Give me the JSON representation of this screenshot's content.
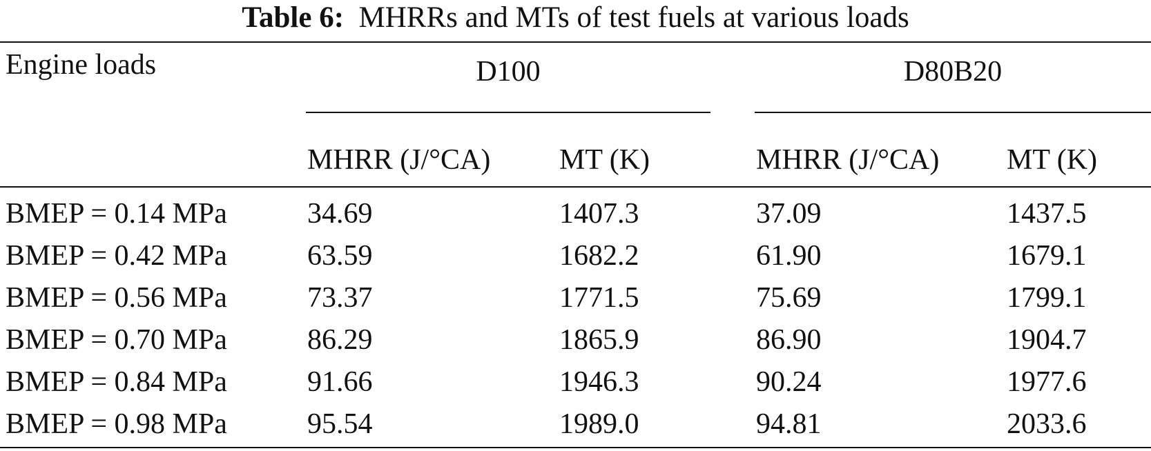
{
  "caption": {
    "label": "Table 6:",
    "text": "MHRRs and MTs of test fuels at various loads"
  },
  "header": {
    "row_label": "Engine loads",
    "groups": [
      "D100",
      "D80B20"
    ],
    "columns": [
      "MHRR (J/°CA)",
      "MT (K)",
      "MHRR (J/°CA)",
      "MT (K)"
    ]
  },
  "rows": [
    {
      "load": "BMEP = 0.14 MPa",
      "cells": [
        "34.69",
        "1407.3",
        "37.09",
        "1437.5"
      ]
    },
    {
      "load": "BMEP = 0.42 MPa",
      "cells": [
        "63.59",
        "1682.2",
        "61.90",
        "1679.1"
      ]
    },
    {
      "load": "BMEP = 0.56 MPa",
      "cells": [
        "73.37",
        "1771.5",
        "75.69",
        "1799.1"
      ]
    },
    {
      "load": "BMEP = 0.70 MPa",
      "cells": [
        "86.29",
        "1865.9",
        "86.90",
        "1904.7"
      ]
    },
    {
      "load": "BMEP = 0.84 MPa",
      "cells": [
        "91.66",
        "1946.3",
        "90.24",
        "1977.6"
      ]
    },
    {
      "load": "BMEP = 0.98 MPa",
      "cells": [
        "95.54",
        "1989.0",
        "94.81",
        "2033.6"
      ]
    }
  ]
}
